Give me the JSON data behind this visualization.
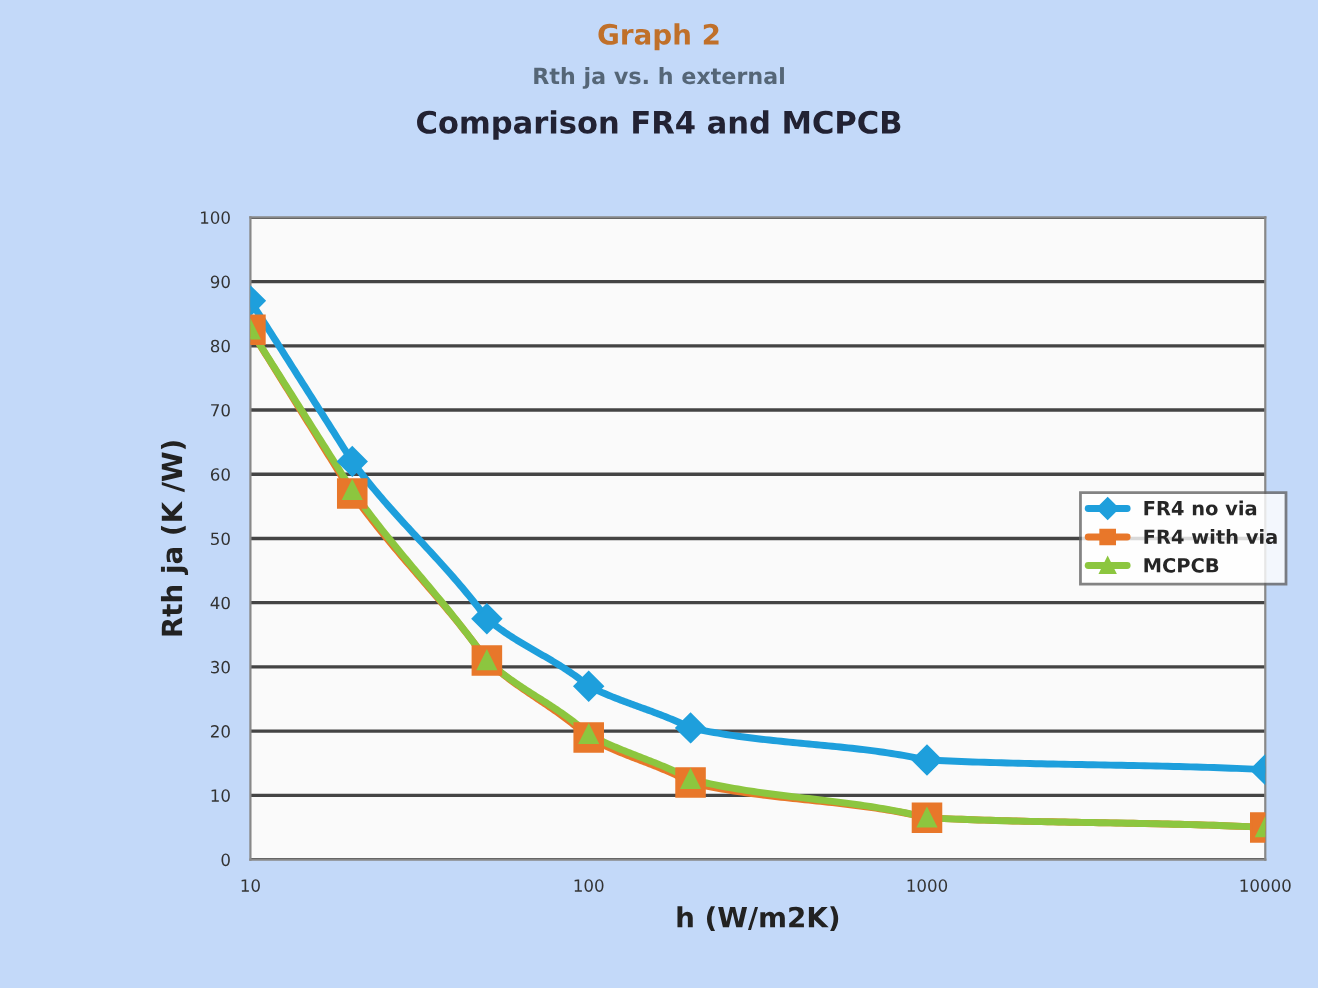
{
  "chart_data": {
    "type": "line",
    "title": "Graph 2",
    "subtitle": "Rth ja vs. h external",
    "annotations": [
      "Comparison FR4 and MCPCB"
    ],
    "xlabel": "h (W/m2K)",
    "ylabel": "Rth ja (K /W)",
    "x": [
      10,
      20,
      50,
      100,
      200,
      1000,
      10000
    ],
    "series": [
      {
        "name": "FR4 no via",
        "color": "#1e9fdc",
        "marker": "diamond",
        "values": [
          87,
          62,
          37.5,
          27,
          20.5,
          15.5,
          14
        ]
      },
      {
        "name": "FR4 with via",
        "color": "#e8772a",
        "marker": "square",
        "values": [
          82.5,
          57,
          31,
          19,
          12,
          6.5,
          5
        ]
      },
      {
        "name": "MCPCB",
        "color": "#8cc63f",
        "marker": "triangle",
        "values": [
          82.5,
          57.5,
          31,
          19.5,
          12.5,
          6.5,
          5
        ]
      }
    ],
    "log": "x",
    "xlim": [
      10,
      10000
    ],
    "xticks": [
      10,
      100,
      1000,
      10000
    ],
    "ylim": [
      0,
      100
    ],
    "yticks": [
      0,
      10,
      20,
      30,
      40,
      50,
      60,
      70,
      80,
      90,
      100
    ],
    "grid": "y",
    "legend": "right"
  }
}
